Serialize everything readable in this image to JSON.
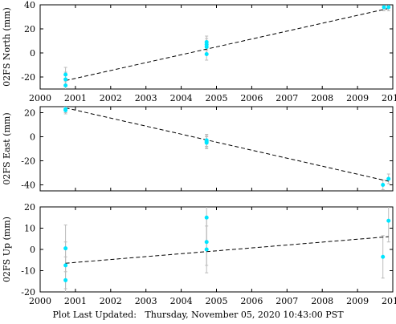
{
  "footer": {
    "label": "Plot Last Updated:",
    "timestamp": "Thursday, November 05, 2020 10:43:00 PST"
  },
  "colors": {
    "point": "#00e5ff",
    "errorbar": "#bbbbbb",
    "trend": "#000000",
    "axes": "#000000"
  },
  "chart_data": [
    {
      "type": "scatter",
      "ylabel": "02FS North (mm)",
      "xlim": [
        2000,
        2010
      ],
      "ylim": [
        -30,
        40
      ],
      "xticks": [
        "2000",
        "2001",
        "2002",
        "2003",
        "2004",
        "2005",
        "2006",
        "2007",
        "2008",
        "2009",
        "2010"
      ],
      "yticks": [
        "-20",
        "0",
        "20",
        "40"
      ],
      "x_tick_labels_shown": true,
      "points": [
        {
          "x": 2000.72,
          "y": -18,
          "err": 6
        },
        {
          "x": 2000.72,
          "y": -22,
          "err": 6
        },
        {
          "x": 2000.72,
          "y": -27,
          "err": 6
        },
        {
          "x": 2004.72,
          "y": 9,
          "err": 5
        },
        {
          "x": 2004.72,
          "y": 7,
          "err": 5
        },
        {
          "x": 2004.72,
          "y": 5,
          "err": 5
        },
        {
          "x": 2004.72,
          "y": -1,
          "err": 5
        },
        {
          "x": 2009.75,
          "y": 38,
          "err": 3
        },
        {
          "x": 2009.88,
          "y": 38,
          "err": 3
        }
      ],
      "trend": {
        "x": [
          2000.72,
          2009.88
        ],
        "y": [
          -23,
          37
        ]
      }
    },
    {
      "type": "scatter",
      "ylabel": "02FS East (mm)",
      "xlim": [
        2000,
        2010
      ],
      "ylim": [
        -45,
        25
      ],
      "xticks": [
        "2000",
        "2001",
        "2002",
        "2003",
        "2004",
        "2005",
        "2006",
        "2007",
        "2008",
        "2009",
        "2010"
      ],
      "yticks": [
        "-40",
        "-20",
        "0",
        "20"
      ],
      "x_tick_labels_shown": false,
      "points": [
        {
          "x": 2000.72,
          "y": 23,
          "err": 3
        },
        {
          "x": 2000.72,
          "y": 22,
          "err": 3
        },
        {
          "x": 2004.72,
          "y": -3,
          "err": 5
        },
        {
          "x": 2004.72,
          "y": -4,
          "err": 5
        },
        {
          "x": 2004.72,
          "y": -5,
          "err": 5
        },
        {
          "x": 2009.72,
          "y": -40,
          "err": 4
        },
        {
          "x": 2009.88,
          "y": -35,
          "err": 4
        }
      ],
      "trend": {
        "x": [
          2000.72,
          2009.88
        ],
        "y": [
          24,
          -37
        ]
      }
    },
    {
      "type": "scatter",
      "ylabel": "02FS Up (mm)",
      "xlim": [
        2000,
        2010
      ],
      "ylim": [
        -20,
        20
      ],
      "xticks": [
        "2000",
        "2001",
        "2002",
        "2003",
        "2004",
        "2005",
        "2006",
        "2007",
        "2008",
        "2009",
        "2010"
      ],
      "yticks": [
        "-20",
        "-10",
        "0",
        "10",
        "20"
      ],
      "x_tick_labels_shown": true,
      "points": [
        {
          "x": 2000.72,
          "y": 0.5,
          "err": 11
        },
        {
          "x": 2000.72,
          "y": -7.5,
          "err": 11
        },
        {
          "x": 2000.72,
          "y": -14.5,
          "err": 11
        },
        {
          "x": 2004.72,
          "y": 15,
          "err": 11
        },
        {
          "x": 2004.72,
          "y": 3.5,
          "err": 11
        },
        {
          "x": 2004.72,
          "y": 0,
          "err": 11
        },
        {
          "x": 2009.72,
          "y": -3.5,
          "err": 10
        },
        {
          "x": 2009.88,
          "y": 13.5,
          "err": 10
        }
      ],
      "trend": {
        "x": [
          2000.72,
          2009.88
        ],
        "y": [
          -6.5,
          6
        ]
      }
    }
  ]
}
